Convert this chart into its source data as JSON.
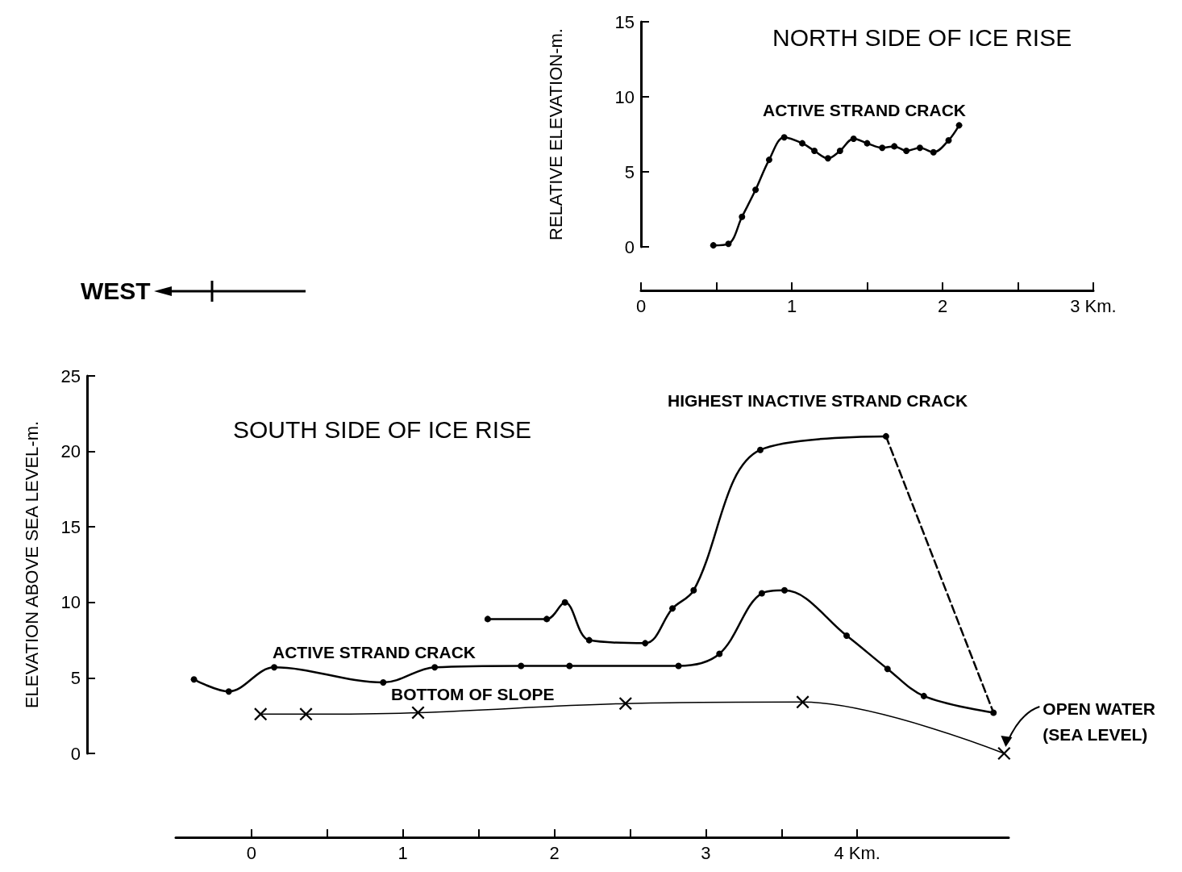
{
  "chart_data": [
    {
      "type": "line",
      "title": "NORTH SIDE OF ICE RISE",
      "ylabel": "RELATIVE ELEVATION-m.",
      "xlim": [
        0,
        3
      ],
      "xticks": [
        0,
        1,
        2,
        {
          "value": 3,
          "label": "3 Km."
        }
      ],
      "ylim": [
        0,
        15
      ],
      "yticks": [
        0,
        5,
        10,
        15
      ],
      "marker": "circle",
      "line_style": "solid",
      "series": [
        {
          "name": "ACTIVE STRAND CRACK",
          "color": "#000000",
          "x": [
            0.48,
            0.58,
            0.67,
            0.76,
            0.85,
            0.95,
            1.07,
            1.15,
            1.24,
            1.32,
            1.41,
            1.5,
            1.6,
            1.68,
            1.76,
            1.85,
            1.94,
            2.04,
            2.11
          ],
          "values": [
            0.1,
            0.2,
            2.0,
            3.8,
            5.8,
            7.3,
            6.9,
            6.4,
            5.9,
            6.4,
            7.2,
            6.9,
            6.6,
            6.7,
            6.4,
            6.6,
            6.3,
            7.1,
            8.1
          ]
        }
      ]
    },
    {
      "type": "line",
      "title": "SOUTH SIDE OF ICE RISE",
      "ylabel": "ELEVATION ABOVE SEA LEVEL-m.",
      "xlim": [
        -0.5,
        5
      ],
      "xticks": [
        0,
        1,
        2,
        3,
        {
          "value": 4,
          "label": "4 Km."
        }
      ],
      "ylim": [
        0,
        25
      ],
      "yticks": [
        0,
        5,
        10,
        15,
        20,
        25
      ],
      "line_style": "solid",
      "annotations": [
        "WEST",
        {
          "text": "OPEN WATER (SEA LEVEL)",
          "x": 4.97,
          "y": 0
        }
      ],
      "series": [
        {
          "name": "ACTIVE STRAND CRACK",
          "color": "#000000",
          "marker": "circle",
          "x": [
            -0.38,
            -0.15,
            0.15,
            0.87,
            1.21,
            1.78,
            2.1,
            2.82,
            3.09,
            3.37,
            3.52,
            3.93,
            4.2,
            4.44,
            4.9
          ],
          "values": [
            4.9,
            4.1,
            5.7,
            4.7,
            5.7,
            5.8,
            5.8,
            5.8,
            6.6,
            10.6,
            10.8,
            7.8,
            5.6,
            3.8,
            2.7
          ]
        },
        {
          "name": "HIGHEST INACTIVE STRAND CRACK",
          "color": "#000000",
          "marker": "circle",
          "x": [
            1.56,
            1.95,
            2.07,
            2.23,
            2.6,
            2.78,
            2.92,
            3.36,
            4.19
          ],
          "values": [
            8.9,
            8.9,
            10.0,
            7.5,
            7.3,
            9.6,
            10.8,
            20.1,
            21.0
          ]
        },
        {
          "color": "#000000",
          "marker": "none",
          "line_style": "dashed",
          "x": [
            4.19,
            4.9
          ],
          "values": [
            21.0,
            2.7
          ]
        },
        {
          "name": "BOTTOM OF SLOPE",
          "color": "#000000",
          "marker": "cross",
          "x": [
            0.06,
            0.36,
            1.1,
            2.47,
            3.64,
            4.97
          ],
          "values": [
            2.6,
            2.6,
            2.7,
            3.3,
            3.4,
            0
          ]
        }
      ]
    }
  ]
}
